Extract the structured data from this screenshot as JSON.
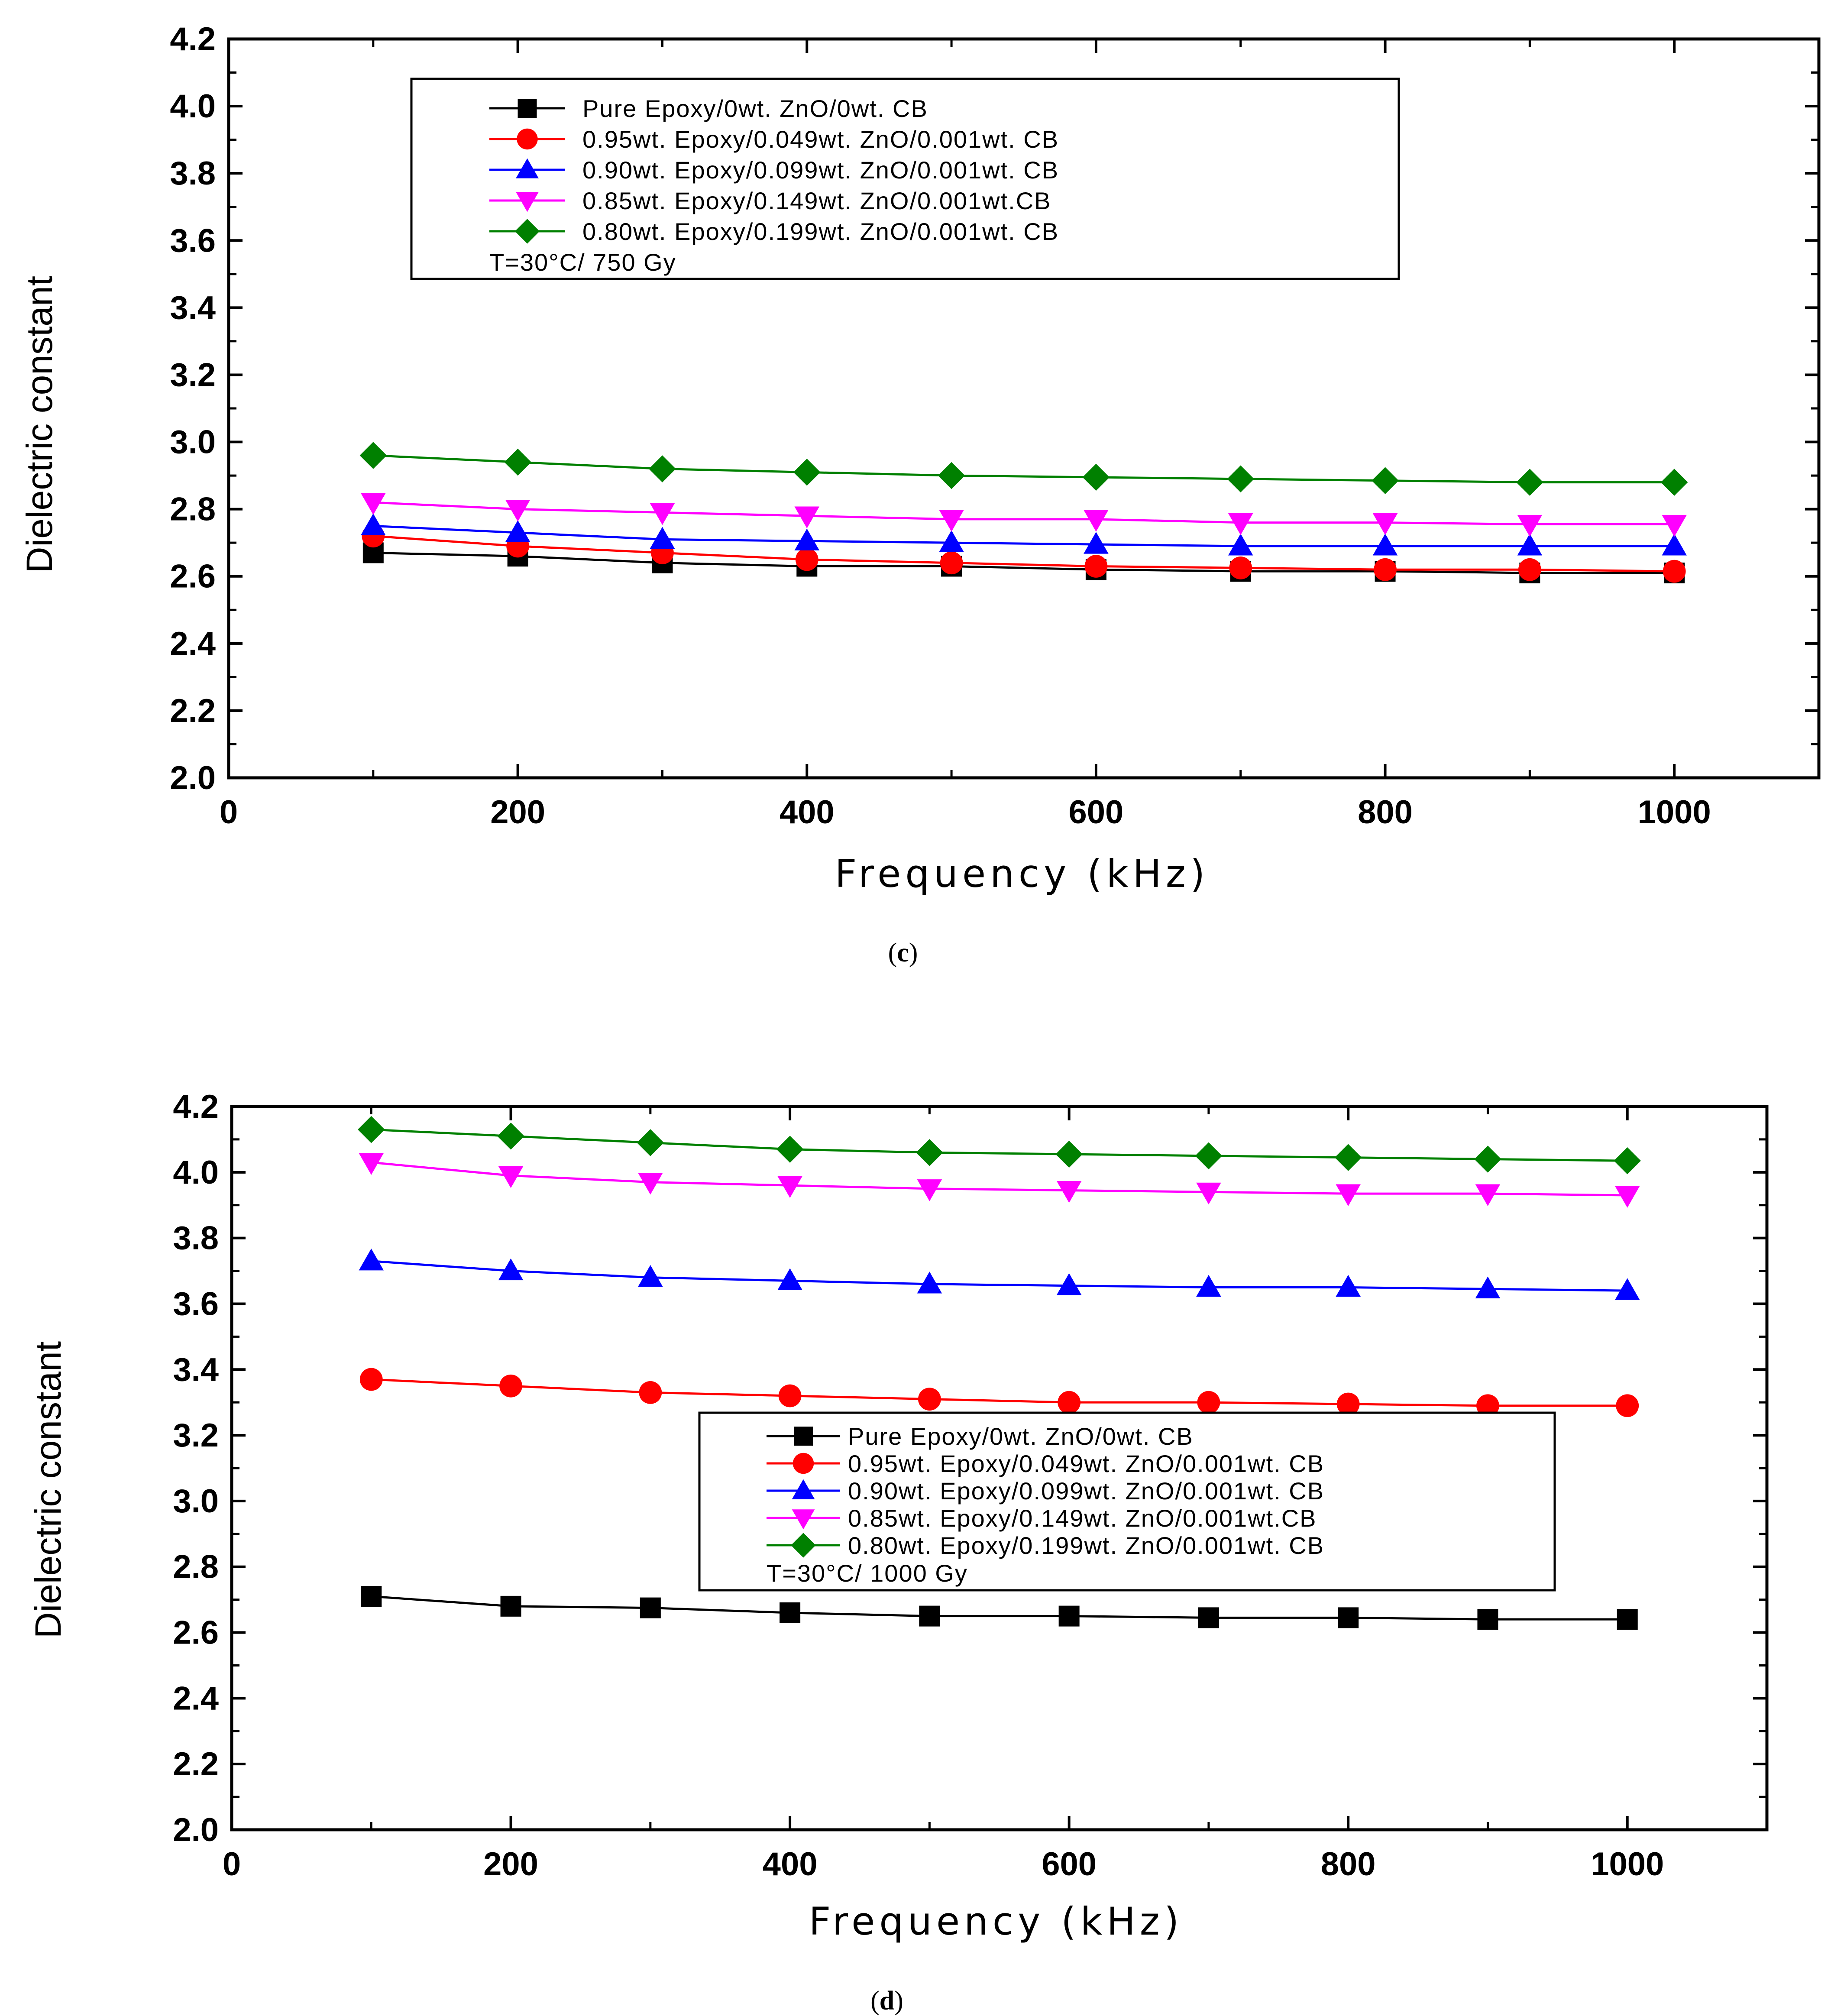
{
  "chart_data": [
    {
      "type": "line",
      "caption": "c",
      "xlabel": "Frequency (kHz)",
      "ylabel": "Dielectric constant",
      "xlim": [
        0,
        1100
      ],
      "ylim": [
        2.0,
        4.2
      ],
      "x_ticks": [
        "0",
        "200",
        "400",
        "600",
        "800",
        "1000"
      ],
      "y_ticks": [
        "2.0",
        "2.2",
        "2.4",
        "2.6",
        "2.8",
        "3.0",
        "3.2",
        "3.4",
        "3.6",
        "3.8",
        "4.0",
        "4.2"
      ],
      "x": [
        100,
        200,
        300,
        400,
        500,
        600,
        700,
        800,
        900,
        1000
      ],
      "legend_position": "top-left",
      "legend_note": "T=30°C/ 750 Gy",
      "series": [
        {
          "name": "Pure Epoxy/0wt. ZnO/0wt. CB",
          "color": "#000000",
          "marker": "square",
          "values": [
            2.67,
            2.66,
            2.64,
            2.63,
            2.63,
            2.62,
            2.615,
            2.615,
            2.61,
            2.61
          ]
        },
        {
          "name": "0.95wt. Epoxy/0.049wt. ZnO/0.001wt. CB",
          "color": "#ff0000",
          "marker": "circle",
          "values": [
            2.72,
            2.69,
            2.67,
            2.65,
            2.64,
            2.63,
            2.625,
            2.62,
            2.62,
            2.615
          ]
        },
        {
          "name": "0.90wt. Epoxy/0.099wt. ZnO/0.001wt. CB",
          "color": "#0000ff",
          "marker": "triangle-up",
          "values": [
            2.75,
            2.73,
            2.71,
            2.705,
            2.7,
            2.695,
            2.69,
            2.69,
            2.69,
            2.69
          ]
        },
        {
          "name": "0.85wt. Epoxy/0.149wt. ZnO/0.001wt.CB",
          "color": "#ff00ff",
          "marker": "triangle-down",
          "values": [
            2.82,
            2.8,
            2.79,
            2.78,
            2.77,
            2.77,
            2.76,
            2.76,
            2.755,
            2.755
          ]
        },
        {
          "name": "0.80wt. Epoxy/0.199wt. ZnO/0.001wt. CB",
          "color": "#008000",
          "marker": "diamond",
          "values": [
            2.96,
            2.94,
            2.92,
            2.91,
            2.9,
            2.895,
            2.89,
            2.885,
            2.88,
            2.88
          ]
        }
      ]
    },
    {
      "type": "line",
      "caption": "d",
      "xlabel": "Frequency (kHz)",
      "ylabel": "Dielectric constant",
      "xlim": [
        0,
        1100
      ],
      "ylim": [
        2.0,
        4.2
      ],
      "x_ticks": [
        "0",
        "200",
        "400",
        "600",
        "800",
        "1000"
      ],
      "y_ticks": [
        "2.0",
        "2.2",
        "2.4",
        "2.6",
        "2.8",
        "3.0",
        "3.2",
        "3.4",
        "3.6",
        "3.8",
        "4.0",
        "4.2"
      ],
      "x": [
        100,
        200,
        300,
        400,
        500,
        600,
        700,
        800,
        900,
        1000
      ],
      "legend_position": "center-right",
      "legend_note": "T=30°C/ 1000 Gy",
      "series": [
        {
          "name": "Pure Epoxy/0wt. ZnO/0wt. CB",
          "color": "#000000",
          "marker": "square",
          "values": [
            2.71,
            2.68,
            2.675,
            2.66,
            2.65,
            2.65,
            2.645,
            2.645,
            2.64,
            2.64
          ]
        },
        {
          "name": "0.95wt. Epoxy/0.049wt. ZnO/0.001wt. CB",
          "color": "#ff0000",
          "marker": "circle",
          "values": [
            3.37,
            3.35,
            3.33,
            3.32,
            3.31,
            3.3,
            3.3,
            3.295,
            3.29,
            3.29
          ]
        },
        {
          "name": "0.90wt. Epoxy/0.099wt. ZnO/0.001wt. CB",
          "color": "#0000ff",
          "marker": "triangle-up",
          "values": [
            3.73,
            3.7,
            3.68,
            3.67,
            3.66,
            3.655,
            3.65,
            3.65,
            3.645,
            3.64
          ]
        },
        {
          "name": "0.85wt. Epoxy/0.149wt. ZnO/0.001wt.CB",
          "color": "#ff00ff",
          "marker": "triangle-down",
          "values": [
            4.03,
            3.99,
            3.97,
            3.96,
            3.95,
            3.945,
            3.94,
            3.935,
            3.935,
            3.93
          ]
        },
        {
          "name": "0.80wt. Epoxy/0.199wt. ZnO/0.001wt. CB",
          "color": "#008000",
          "marker": "diamond",
          "values": [
            4.13,
            4.11,
            4.09,
            4.07,
            4.06,
            4.055,
            4.05,
            4.045,
            4.04,
            4.035
          ]
        }
      ]
    }
  ]
}
